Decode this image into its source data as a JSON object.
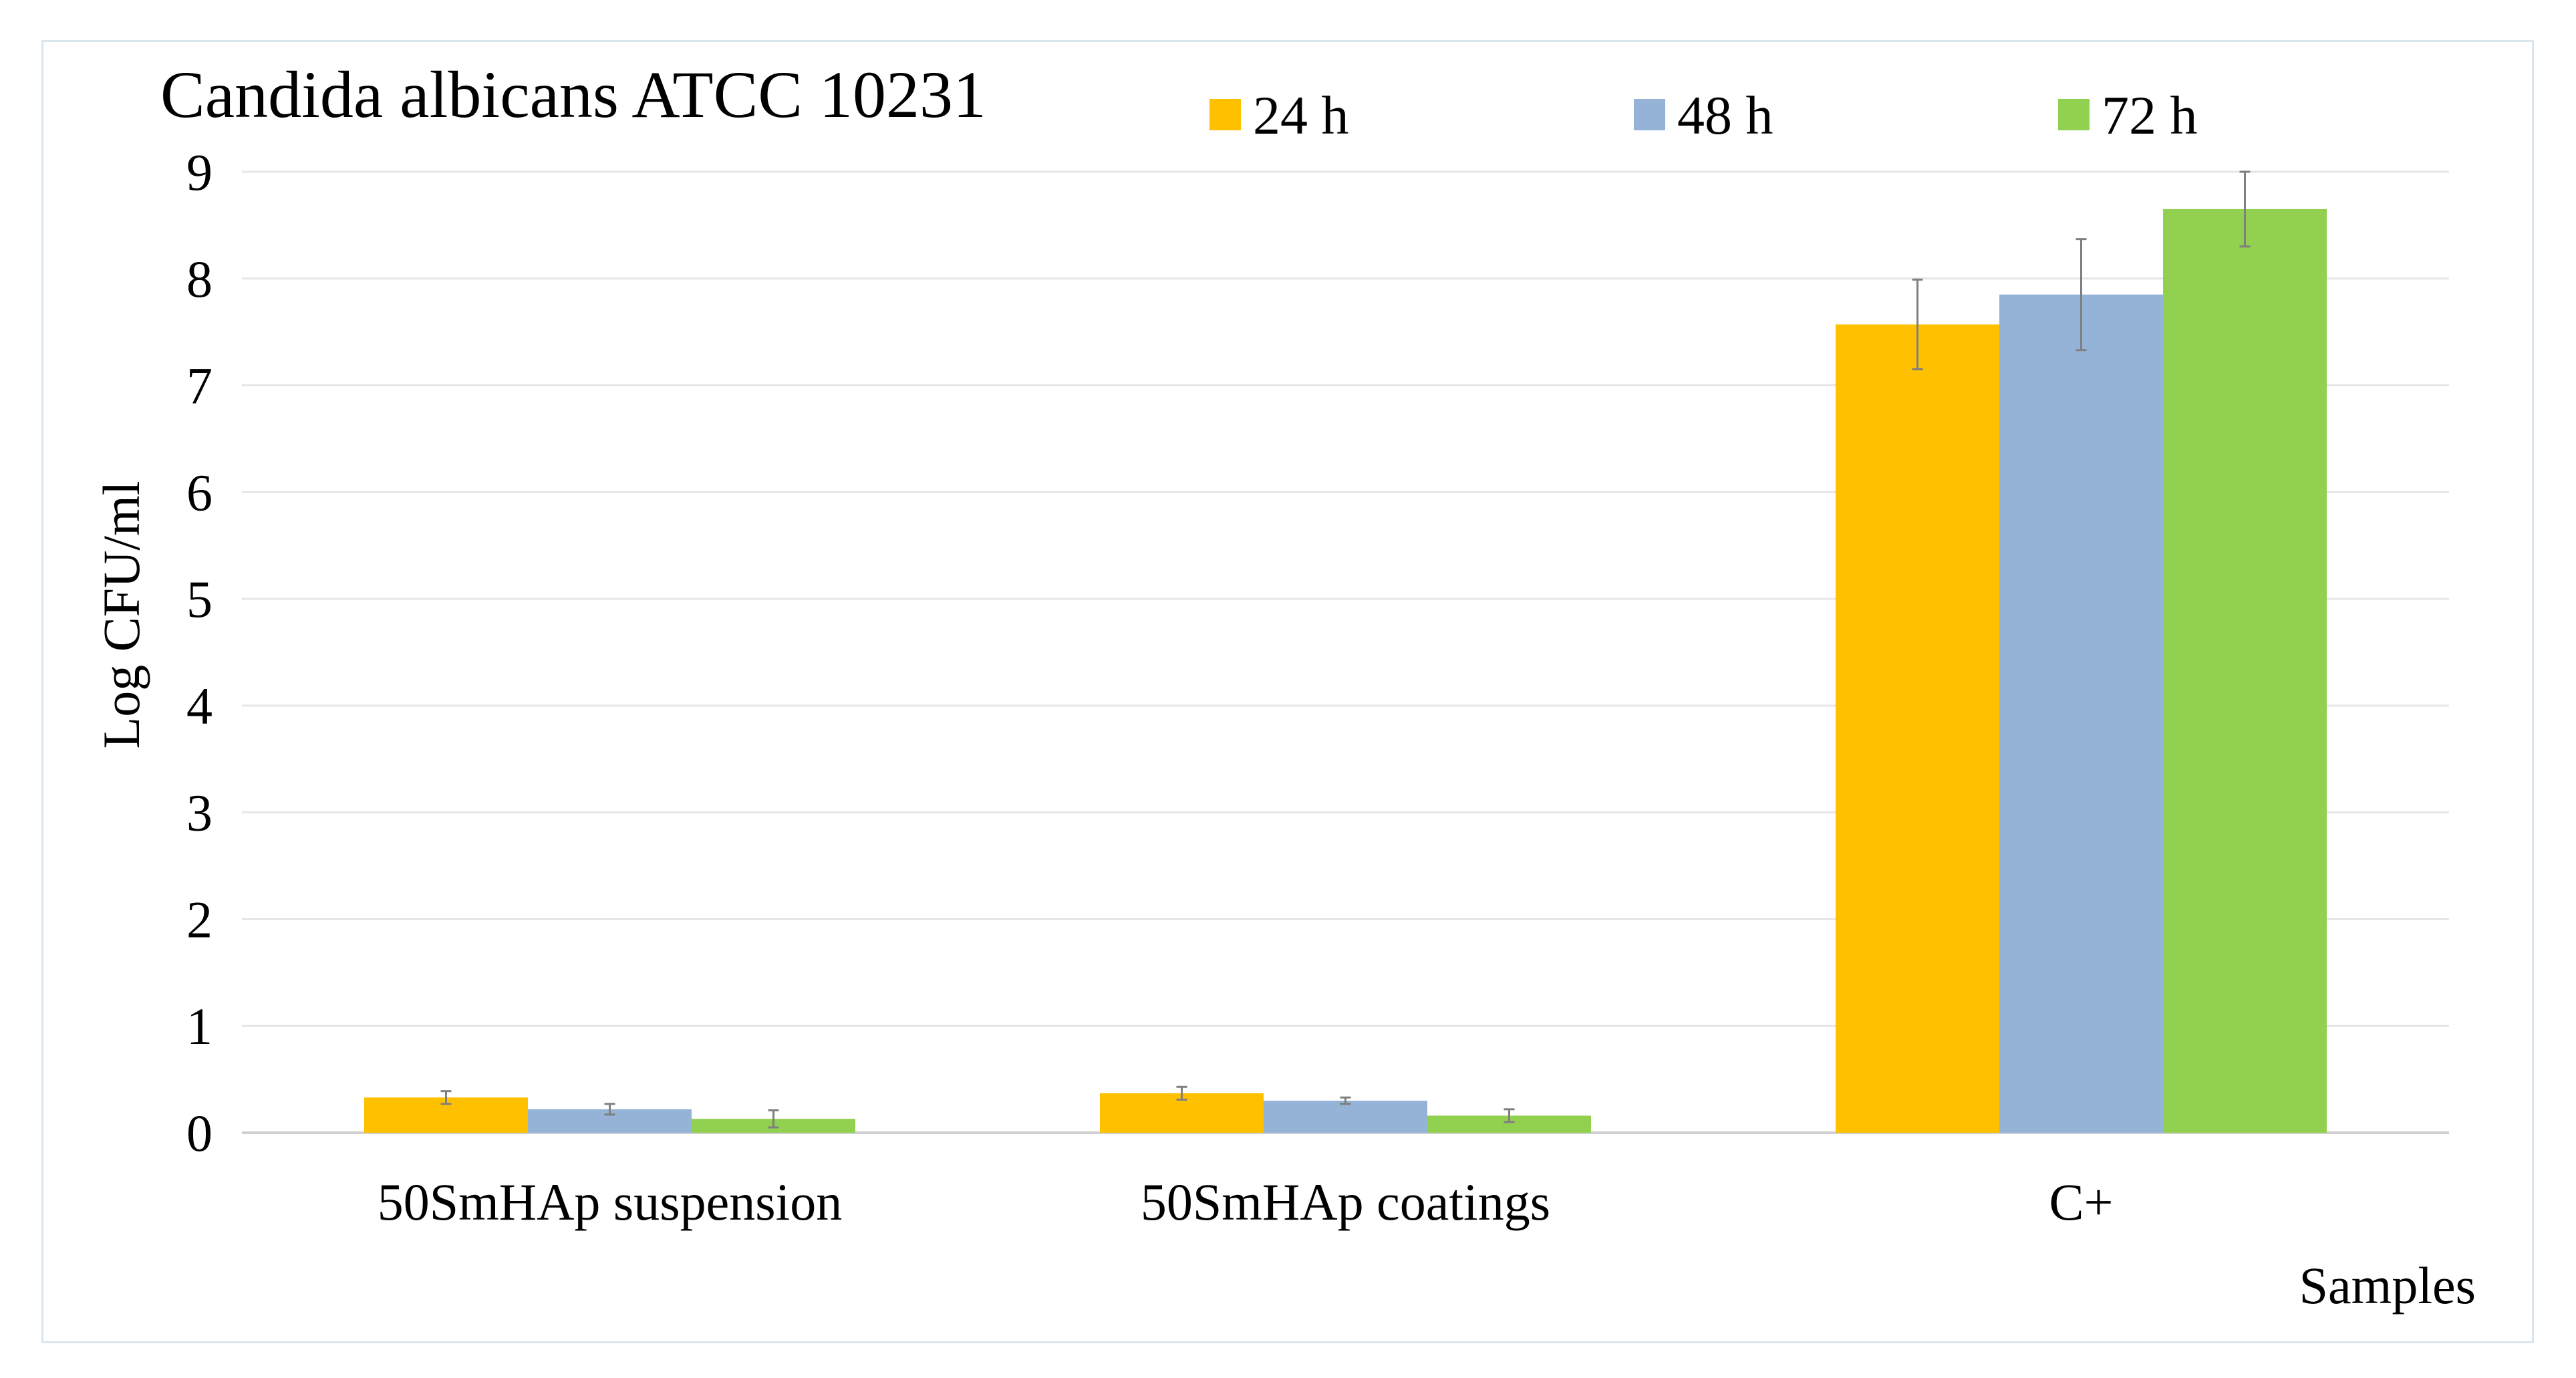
{
  "chart_data": {
    "type": "bar",
    "title": "Candida albicans ATCC 10231",
    "xlabel": "Samples",
    "ylabel": "Log CFU/ml",
    "ylim": [
      0,
      9
    ],
    "yticks": [
      "0",
      "1",
      "2",
      "3",
      "4",
      "5",
      "6",
      "7",
      "8",
      "9"
    ],
    "grid": true,
    "legend_position": "top",
    "categories": [
      "50SmHAp suspension",
      "50SmHAp coatings",
      "C+"
    ],
    "series": [
      {
        "name": "24 h",
        "color": "#ffc000",
        "values": [
          0.33,
          0.37,
          7.57
        ],
        "errors": [
          0.06,
          0.06,
          0.42
        ]
      },
      {
        "name": "48 h",
        "color": "#95b3d7",
        "values": [
          0.22,
          0.3,
          7.85
        ],
        "errors": [
          0.05,
          0.03,
          0.52
        ]
      },
      {
        "name": "72 h",
        "color": "#92d050",
        "values": [
          0.13,
          0.16,
          8.65
        ],
        "errors": [
          0.08,
          0.06,
          0.35
        ]
      }
    ]
  }
}
